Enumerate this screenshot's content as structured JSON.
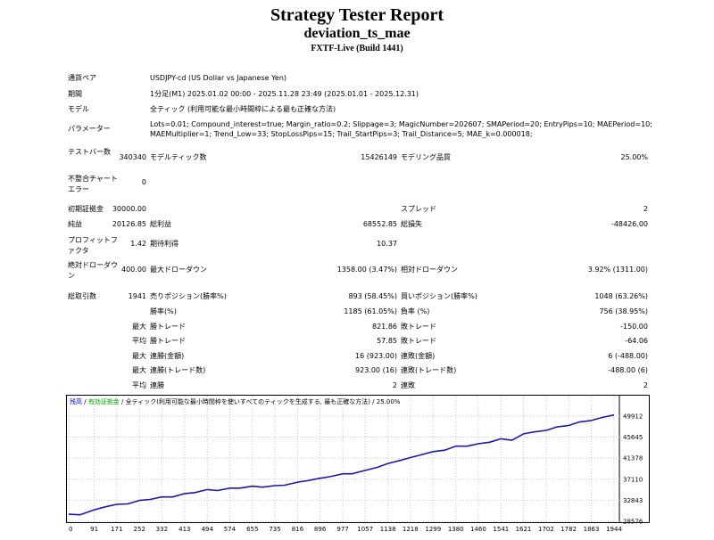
{
  "header": {
    "title": "Strategy Tester Report",
    "expert": "deviation_ts_mae",
    "server": "FXTF-Live (Build 1441)"
  },
  "settings": {
    "symbol_label": "通貨ペア",
    "symbol": "USDJPY-cd (US Dollar vs Japanese Yen)",
    "period_label": "期間",
    "period": "1分足(M1) 2025.01.02 00:00 - 2025.11.28 23:49 (2025.01.01 - 2025.12.31)",
    "model_label": "モデル",
    "model": "全ティック (利用可能な最小時間枠による最も正確な方法)",
    "params_label": "パラメーター",
    "params_line1": "Lots=0.01; Compound_interest=true; Margin_ratio=0.2; Slippage=3; MagicNumber=202607; SMAPeriod=20; EntryPips=10; MAEPeriod=10;",
    "params_line2": "MAEMultiplier=1; Trend_Low=33; StopLossPips=15; Trail_StartPips=3; Trail_Distance=5; MAE_k=0.000018;"
  },
  "stats": {
    "bars_label": "テストバー数",
    "bars": "340340",
    "ticks_label": "モデルティック数",
    "ticks": "15426149",
    "quality_label": "モデリング品質",
    "quality": "25.00%",
    "mismatch_label": "不整合チャートエラー",
    "mismatch": "0",
    "deposit_label": "初期証拠金",
    "deposit": "30000.00",
    "spread_label": "スプレッド",
    "spread": "2",
    "net_label": "純益",
    "net": "20126.85",
    "gross_profit_label": "総利益",
    "gross_profit": "68552.85",
    "gross_loss_label": "総損失",
    "gross_loss": "-48426.00",
    "pf_label": "プロフィットファクタ",
    "pf": "1.42",
    "payoff_label": "期待利得",
    "payoff": "10.37",
    "abs_dd_label": "絶対ドローダウン",
    "abs_dd": "400.00",
    "max_dd_label": "最大ドローダウン",
    "max_dd": "1358.00 (3.47%)",
    "rel_dd_label": "相対ドローダウン",
    "rel_dd": "3.92% (1311.00)",
    "trades_label": "総取引数",
    "trades": "1941",
    "short_label": "売りポジション(勝率%)",
    "short": "893 (58.45%)",
    "long_label": "買いポジション(勝率%)",
    "long": "1048 (63.26%)",
    "win_label": "勝率(%)",
    "win": "1185 (61.05%)",
    "loss_label": "負率 (%)",
    "loss": "756 (38.95%)",
    "max_word": "最大",
    "avg_word": "平均",
    "largest_win_label": "勝トレード",
    "largest_win": "821.86",
    "largest_loss_label": "敗トレード",
    "largest_loss": "-150.00",
    "avg_win_label": "勝トレード",
    "avg_win": "57.85",
    "avg_loss_label": "敗トレード",
    "avg_loss": "-64.06",
    "cons_wins_label": "連勝(金額)",
    "cons_wins": "16 (923.00)",
    "cons_losses_label": "連敗(金額)",
    "cons_losses": "6 (-488.00)",
    "cons_profit_label": "連勝(トレード数)",
    "cons_profit": "923.00 (16)",
    "cons_loss_label": "連敗(トレード数)",
    "cons_loss": "-488.00 (6)",
    "avg_cons_wins_label": "連勝",
    "avg_cons_wins": "2",
    "avg_cons_losses_label": "連敗",
    "avg_cons_losses": "2"
  },
  "chart_legend": {
    "balance": "残高",
    "sep1": " / ",
    "equity": "有効証拠金",
    "sep2": " / ",
    "model": "全ティック(利用可能な最小時間枠を使いすべてのティックを生成する, 最も正確な方法)",
    "sep3": " / ",
    "quality": "25.00%"
  },
  "colors": {
    "balance_line": "#1a1aa6",
    "legend_balance": "#0000cc",
    "legend_equity": "#00a000",
    "grid": "#c8c8c8"
  },
  "chart_data": {
    "type": "line",
    "x_ticks": [
      0,
      91,
      171,
      252,
      332,
      413,
      494,
      574,
      655,
      735,
      816,
      896,
      977,
      1057,
      1138,
      1218,
      1299,
      1380,
      1460,
      1541,
      1621,
      1702,
      1782,
      1863,
      1944
    ],
    "y_ticks": [
      28576,
      32843,
      37110,
      41378,
      45645,
      49912
    ],
    "xlim": [
      0,
      1944
    ],
    "ylim": [
      28576,
      51700
    ],
    "series": [
      {
        "x": [
          0,
          40,
          91,
          130,
          171,
          210,
          252,
          290,
          332,
          370,
          413,
          450,
          494,
          530,
          574,
          610,
          655,
          690,
          735,
          770,
          816,
          850,
          896,
          930,
          977,
          1010,
          1057,
          1100,
          1138,
          1180,
          1218,
          1260,
          1299,
          1340,
          1380,
          1420,
          1460,
          1500,
          1541,
          1580,
          1621,
          1660,
          1702,
          1740,
          1782,
          1820,
          1863,
          1900,
          1944
        ],
        "y": [
          30000,
          29900,
          30900,
          31500,
          32000,
          32100,
          32800,
          33000,
          33500,
          33500,
          34200,
          34400,
          35000,
          34800,
          35300,
          35300,
          35700,
          35500,
          35800,
          35900,
          36500,
          36800,
          37300,
          37600,
          38200,
          38200,
          38900,
          39500,
          40300,
          40900,
          41500,
          42100,
          42700,
          43000,
          43800,
          43800,
          44300,
          44600,
          45300,
          45000,
          46300,
          46700,
          47000,
          47700,
          48000,
          48700,
          49000,
          49600,
          50126
        ]
      }
    ]
  }
}
